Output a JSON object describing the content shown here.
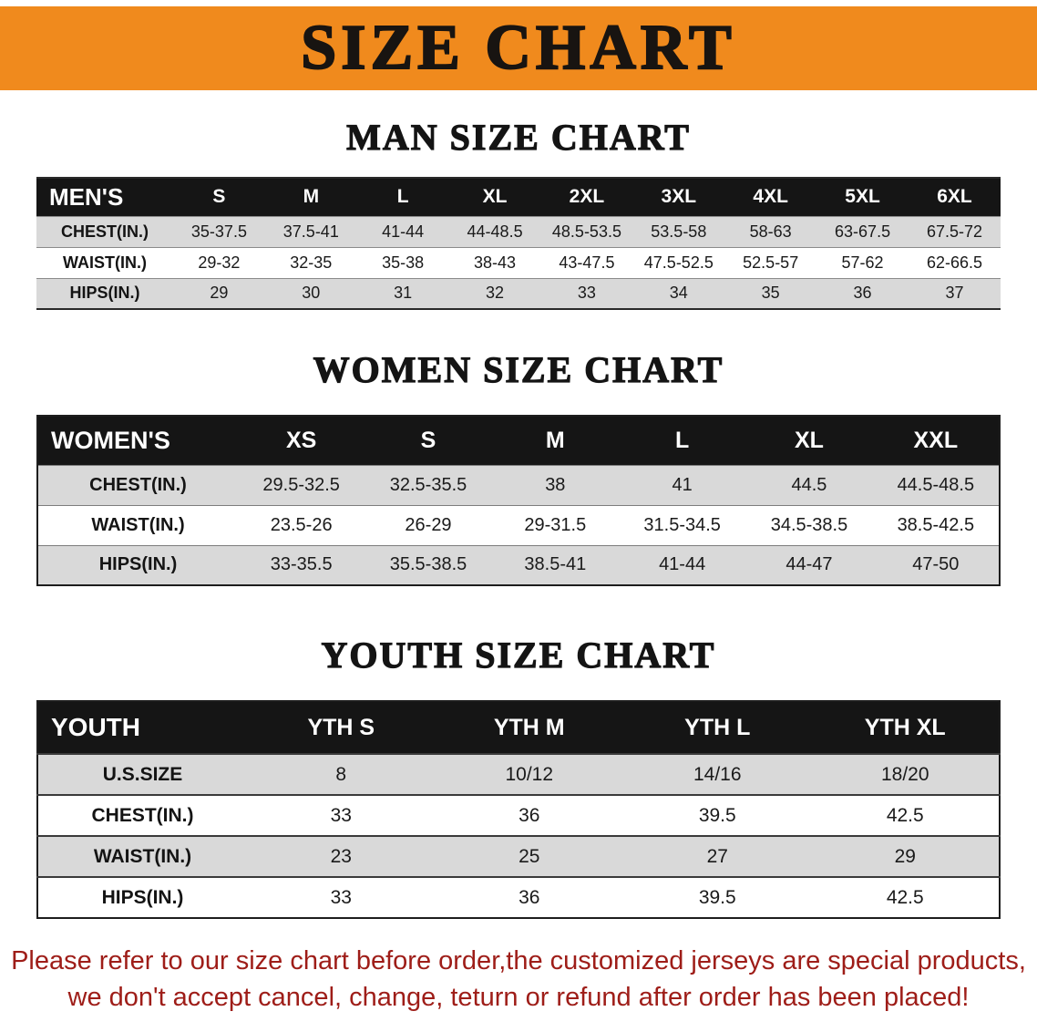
{
  "banner": {
    "title": "SIZE CHART",
    "background_color": "#f08a1d",
    "text_color": "#181411"
  },
  "sections": {
    "men": {
      "heading": "MAN SIZE CHART",
      "table": {
        "header": [
          "MEN'S",
          "S",
          "M",
          "L",
          "XL",
          "2XL",
          "3XL",
          "4XL",
          "5XL",
          "6XL"
        ],
        "rows": [
          [
            "CHEST(IN.)",
            "35-37.5",
            "37.5-41",
            "41-44",
            "44-48.5",
            "48.5-53.5",
            "53.5-58",
            "58-63",
            "63-67.5",
            "67.5-72"
          ],
          [
            "WAIST(IN.)",
            "29-32",
            "32-35",
            "35-38",
            "38-43",
            "43-47.5",
            "47.5-52.5",
            "52.5-57",
            "57-62",
            "62-66.5"
          ],
          [
            "HIPS(IN.)",
            "29",
            "30",
            "31",
            "32",
            "33",
            "34",
            "35",
            "36",
            "37"
          ]
        ]
      }
    },
    "women": {
      "heading": "WOMEN SIZE CHART",
      "table": {
        "header": [
          "WOMEN'S",
          "XS",
          "S",
          "M",
          "L",
          "XL",
          "XXL"
        ],
        "rows": [
          [
            "CHEST(IN.)",
            "29.5-32.5",
            "32.5-35.5",
            "38",
            "41",
            "44.5",
            "44.5-48.5"
          ],
          [
            "WAIST(IN.)",
            "23.5-26",
            "26-29",
            "29-31.5",
            "31.5-34.5",
            "34.5-38.5",
            "38.5-42.5"
          ],
          [
            "HIPS(IN.)",
            "33-35.5",
            "35.5-38.5",
            "38.5-41",
            "41-44",
            "44-47",
            "47-50"
          ]
        ]
      }
    },
    "youth": {
      "heading": "YOUTH SIZE CHART",
      "table": {
        "header": [
          "YOUTH",
          "YTH S",
          "YTH M",
          "YTH L",
          "YTH XL"
        ],
        "rows": [
          [
            "U.S.SIZE",
            "8",
            "10/12",
            "14/16",
            "18/20"
          ],
          [
            "CHEST(IN.)",
            "33",
            "36",
            "39.5",
            "42.5"
          ],
          [
            "WAIST(IN.)",
            "23",
            "25",
            "27",
            "29"
          ],
          [
            "HIPS(IN.)",
            "33",
            "36",
            "39.5",
            "42.5"
          ]
        ]
      }
    }
  },
  "footer": {
    "line1": "Please refer to our size chart before order,the customized jerseys are special products,",
    "line2": "we don't accept cancel, change, teturn or refund after order has been placed!",
    "text_color": "#9e1d18"
  }
}
